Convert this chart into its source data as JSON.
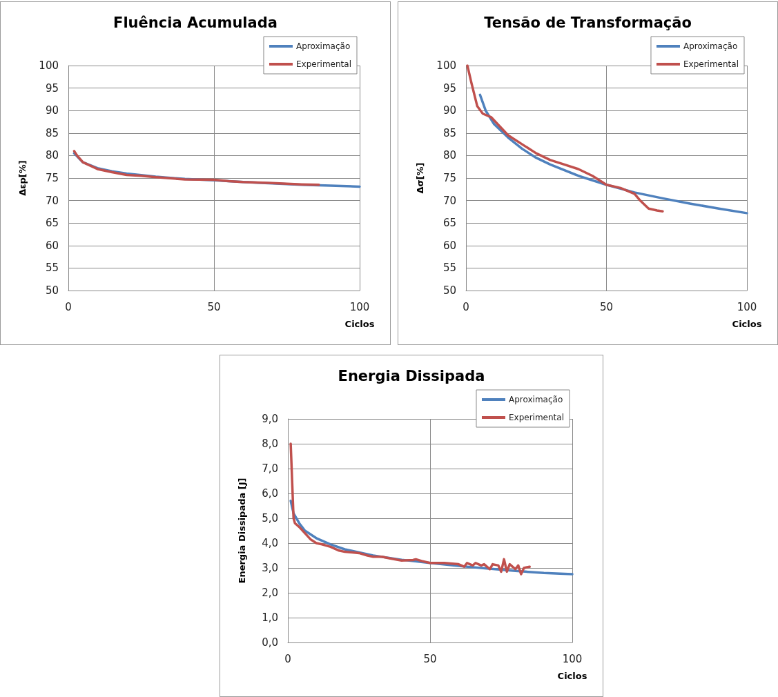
{
  "chart_data": [
    {
      "type": "line",
      "title": "Fluência Acumulada",
      "xlabel": "Ciclos",
      "ylabel": "Δεp[%]",
      "xlim": [
        0,
        100
      ],
      "xticks": [
        0,
        50,
        100
      ],
      "ylim": [
        50,
        100
      ],
      "yticks": [
        50,
        55,
        60,
        65,
        70,
        75,
        80,
        85,
        90,
        95,
        100
      ],
      "grid": true,
      "legend": "top right",
      "marker": "none",
      "line_style": "solid",
      "series": [
        {
          "name": "Aproximação",
          "color": "#4f81bd",
          "x": [
            2,
            5,
            10,
            15,
            20,
            30,
            40,
            50,
            60,
            70,
            80,
            90,
            100
          ],
          "values": [
            80.5,
            78.5,
            77.2,
            76.5,
            76,
            75.3,
            74.8,
            74.5,
            74.1,
            73.8,
            73.5,
            73.3,
            73.1
          ]
        },
        {
          "name": "Experimental",
          "color": "#c0504d",
          "x": [
            2,
            3,
            5,
            10,
            15,
            20,
            25,
            30,
            40,
            50,
            55,
            60,
            70,
            80,
            86
          ],
          "values": [
            81,
            80,
            78.5,
            77,
            76.3,
            75.7,
            75.5,
            75.2,
            74.7,
            74.6,
            74.3,
            74.1,
            73.9,
            73.6,
            73.5
          ]
        }
      ]
    },
    {
      "type": "line",
      "title": "Tensão de Transformação",
      "xlabel": "Ciclos",
      "ylabel": "Δσ[%]",
      "xlim": [
        0,
        100
      ],
      "xticks": [
        0,
        50,
        100
      ],
      "ylim": [
        50,
        100
      ],
      "yticks": [
        50,
        55,
        60,
        65,
        70,
        75,
        80,
        85,
        90,
        95,
        100
      ],
      "grid": true,
      "legend": "top right",
      "marker": "none",
      "line_style": "solid",
      "series": [
        {
          "name": "Aproximação",
          "color": "#4f81bd",
          "x": [
            5,
            7,
            10,
            15,
            20,
            25,
            30,
            40,
            50,
            60,
            70,
            80,
            90,
            100
          ],
          "values": [
            93.5,
            90,
            87,
            84,
            81.5,
            79.5,
            78,
            75.5,
            73.5,
            71.8,
            70.5,
            69.3,
            68.2,
            67.2
          ]
        },
        {
          "name": "Experimental",
          "color": "#c0504d",
          "x": [
            0.5,
            2,
            4,
            6,
            9,
            12,
            15,
            20,
            25,
            30,
            35,
            40,
            45,
            50,
            55,
            60,
            62,
            65,
            68,
            70
          ],
          "values": [
            100,
            96,
            91,
            89.3,
            88.5,
            86.5,
            84.5,
            82.5,
            80.5,
            79,
            78,
            77,
            75.5,
            73.5,
            72.8,
            71.5,
            70,
            68.2,
            67.8,
            67.6
          ]
        }
      ]
    },
    {
      "type": "line",
      "title": "Energia Dissipada",
      "xlabel": "Ciclos",
      "ylabel": "Energia Dissipada [J]",
      "xlim": [
        0,
        100
      ],
      "xticks": [
        0,
        50,
        100
      ],
      "ylim": [
        0,
        9
      ],
      "yticks": [
        {
          "value": 0,
          "label": "0,0"
        },
        {
          "value": 1,
          "label": "1,0"
        },
        {
          "value": 2,
          "label": "2,0"
        },
        {
          "value": 3,
          "label": "3,0"
        },
        {
          "value": 4,
          "label": "4,0"
        },
        {
          "value": 5,
          "label": "5,0"
        },
        {
          "value": 6,
          "label": "6,0"
        },
        {
          "value": 7,
          "label": "7,0"
        },
        {
          "value": 8,
          "label": "8,0"
        },
        {
          "value": 9,
          "label": "9,0"
        }
      ],
      "grid": true,
      "legend": "top right",
      "marker": "none",
      "line_style": "solid",
      "series": [
        {
          "name": "Aproximação",
          "color": "#4f81bd",
          "x": [
            1,
            2,
            4,
            6,
            10,
            15,
            20,
            30,
            40,
            50,
            60,
            70,
            80,
            90,
            100
          ],
          "values": [
            5.7,
            5.2,
            4.8,
            4.5,
            4.2,
            3.95,
            3.75,
            3.5,
            3.33,
            3.2,
            3.08,
            2.98,
            2.88,
            2.8,
            2.75
          ]
        },
        {
          "name": "Experimental",
          "color": "#c0504d",
          "x": [
            1,
            1.5,
            2,
            2.5,
            4,
            6,
            8,
            10,
            12,
            15,
            18,
            20,
            25,
            28,
            30,
            33,
            36,
            40,
            44,
            45,
            47,
            50,
            55,
            60,
            62,
            63,
            65,
            66,
            68,
            69,
            71,
            72,
            74,
            75,
            76,
            77,
            78,
            80,
            81,
            82,
            83,
            85
          ],
          "values": [
            8,
            6.5,
            5,
            4.8,
            4.65,
            4.4,
            4.15,
            4,
            3.95,
            3.85,
            3.7,
            3.65,
            3.6,
            3.5,
            3.45,
            3.45,
            3.38,
            3.3,
            3.32,
            3.35,
            3.28,
            3.2,
            3.2,
            3.15,
            3.05,
            3.2,
            3.1,
            3.2,
            3.1,
            3.15,
            2.95,
            3.15,
            3.1,
            2.85,
            3.35,
            2.85,
            3.15,
            2.95,
            3.1,
            2.75,
            3,
            3.05
          ]
        }
      ]
    }
  ]
}
